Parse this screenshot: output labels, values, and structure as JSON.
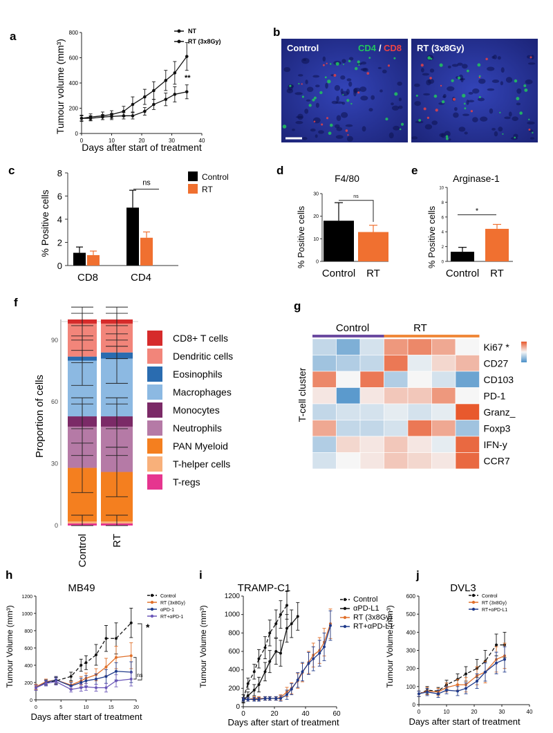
{
  "figure": {
    "panel_a": {
      "letter": "a",
      "chart_data": {
        "type": "line",
        "ylabel": "Tumour volume (mm³)",
        "xlabel": "Days after start of treatment",
        "ylim": [
          0,
          800
        ],
        "xlim": [
          0,
          40
        ],
        "yticks": [
          "0",
          "200",
          "400",
          "600",
          "800"
        ],
        "xticks": [
          "0",
          "10",
          "20",
          "30",
          "40"
        ],
        "significance": "**",
        "series": [
          {
            "name": "NT",
            "x": [
              0,
              3,
              7,
              10,
              14,
              17,
              21,
              24,
              28,
              31,
              35
            ],
            "y": [
              120,
              130,
              140,
              150,
              175,
              230,
              290,
              340,
              420,
              480,
              610
            ],
            "err": [
              25,
              25,
              30,
              30,
              40,
              60,
              60,
              70,
              80,
              90,
              110
            ]
          },
          {
            "name": "RT (3x8Gy)",
            "x": [
              0,
              3,
              7,
              10,
              14,
              17,
              21,
              24,
              28,
              31,
              35
            ],
            "y": [
              120,
              120,
              130,
              135,
              140,
              140,
              175,
              230,
              270,
              310,
              330
            ],
            "err": [
              20,
              20,
              20,
              25,
              25,
              25,
              30,
              40,
              50,
              60,
              55
            ]
          }
        ]
      }
    },
    "panel_b": {
      "letter": "b",
      "label_control": "Control",
      "stain_cd4": "CD4",
      "stain_slash": "/",
      "stain_cd8": "CD8",
      "label_rt": "RT (3x8Gy)",
      "colors": {
        "cd4": "#22c55e",
        "cd8": "#ef4444",
        "dapi": "#2a3aa8"
      }
    },
    "panel_c": {
      "letter": "c",
      "chart_data": {
        "type": "bar",
        "ylabel": "% Positive cells",
        "ylim": [
          0,
          8
        ],
        "yticks": [
          "0",
          "2",
          "4",
          "6",
          "8"
        ],
        "categories": [
          "CD8",
          "CD4"
        ],
        "series": [
          {
            "name": "Control",
            "values": [
              1.1,
              5.0
            ],
            "err": [
              0.5,
              1.5
            ],
            "color": "#000000"
          },
          {
            "name": "RT",
            "values": [
              0.9,
              2.4
            ],
            "err": [
              0.35,
              0.5
            ],
            "color": "#f07030"
          }
        ],
        "annotation": "ns"
      }
    },
    "panel_d": {
      "letter": "d",
      "chart_data": {
        "type": "bar",
        "title": "F4/80",
        "ylabel": "% Positive cells",
        "ylim": [
          0,
          30
        ],
        "yticks": [
          "0",
          "10",
          "20",
          "30"
        ],
        "categories": [
          "Control",
          "RT"
        ],
        "values": [
          18,
          13
        ],
        "err": [
          8,
          3
        ],
        "colors": [
          "#000000",
          "#f07030"
        ],
        "annotation": "ns"
      }
    },
    "panel_e": {
      "letter": "e",
      "chart_data": {
        "type": "bar",
        "title": "Arginase-1",
        "ylabel": "% Positive cells",
        "ylim": [
          0,
          10
        ],
        "yticks": [
          "0",
          "2",
          "4",
          "6",
          "8",
          "10"
        ],
        "categories": [
          "Control",
          "RT"
        ],
        "values": [
          1.3,
          4.4
        ],
        "err": [
          0.6,
          0.6
        ],
        "colors": [
          "#000000",
          "#f07030"
        ],
        "annotation": "*"
      }
    },
    "panel_f": {
      "letter": "f",
      "chart_data": {
        "type": "bar",
        "stacked": true,
        "ylabel": "Proportion of cells",
        "ylim": [
          0,
          100
        ],
        "yticks": [
          "0",
          "30",
          "60",
          "90"
        ],
        "categories": [
          "Control",
          "RT"
        ],
        "series": [
          {
            "name": "T-regs",
            "color": "#e6358f",
            "values": [
              1,
              1
            ]
          },
          {
            "name": "T-helper cells",
            "color": "#f8b07a",
            "values": [
              1,
              1
            ]
          },
          {
            "name": "PAN Myeloid",
            "color": "#f47f1f",
            "values": [
              26,
              24
            ]
          },
          {
            "name": "Neutrophils",
            "color": "#b57aa6",
            "values": [
              20,
              22
            ]
          },
          {
            "name": "Monocytes",
            "color": "#7b2a67",
            "values": [
              5,
              5
            ]
          },
          {
            "name": "Macrophages",
            "color": "#8cb9e2",
            "values": [
              27,
              28
            ]
          },
          {
            "name": "Eosinophils",
            "color": "#2a6cb0",
            "values": [
              2,
              3
            ]
          },
          {
            "name": "Dendritic cells",
            "color": "#f2857a",
            "values": [
              16,
              14
            ]
          },
          {
            "name": "CD8+ T cells",
            "color": "#d62b2b",
            "values": [
              2,
              2
            ]
          }
        ],
        "legend": [
          "CD8+ T cells",
          "Dendritic cells",
          "Eosinophils",
          "Macrophages",
          "Monocytes",
          "Neutrophils",
          "PAN Myeloid",
          "T-helper cells",
          "T-regs"
        ]
      }
    },
    "panel_g": {
      "letter": "g",
      "chart_data": {
        "type": "heatmap",
        "ylabel": "T-cell cluster",
        "group_labels": [
          "Control",
          "RT"
        ],
        "group_colors": [
          "#6b4aa0",
          "#f0883a"
        ],
        "rows": [
          "Ki67 *",
          "CD27",
          "CD103",
          "PD-1",
          "Granz_",
          "Foxp3",
          "IFN-y",
          "CCR7"
        ],
        "values": [
          [
            -0.3,
            -0.7,
            -0.2,
            0.6,
            0.7,
            0.5,
            0.0
          ],
          [
            -0.5,
            -0.4,
            -0.3,
            0.8,
            -0.1,
            0.2,
            0.4
          ],
          [
            0.7,
            0.0,
            0.8,
            -0.4,
            0.0,
            -0.2,
            -0.8
          ],
          [
            0.1,
            -0.9,
            0.1,
            0.3,
            0.3,
            0.6,
            0.0
          ],
          [
            -0.3,
            -0.2,
            -0.2,
            -0.1,
            -0.2,
            -0.1,
            1.0
          ],
          [
            0.5,
            -0.3,
            -0.3,
            -0.2,
            0.8,
            0.5,
            -0.5
          ],
          [
            -0.4,
            0.2,
            0.1,
            0.3,
            0.1,
            -0.1,
            0.9
          ],
          [
            -0.2,
            0.0,
            0.1,
            0.3,
            0.2,
            0.1,
            0.9
          ]
        ]
      }
    },
    "panel_h": {
      "letter": "h",
      "chart_data": {
        "type": "line",
        "title": "MB49",
        "ylabel": "Tumour Volume (mm³)",
        "xlabel": "Days after start of treatment",
        "ylim": [
          0,
          1200
        ],
        "xlim": [
          0,
          20
        ],
        "yticks": [
          "0",
          "200",
          "400",
          "600",
          "800",
          "1000",
          "1200"
        ],
        "xticks": [
          "0",
          "5",
          "10",
          "15",
          "20"
        ],
        "sig_star": "*",
        "sig_ns": "ns",
        "series": [
          {
            "name": "Control",
            "color": "#111111",
            "dash": true,
            "x": [
              0,
              2,
              4,
              7,
              9,
              10,
              12,
              14,
              16,
              19
            ],
            "y": [
              150,
              200,
              220,
              270,
              400,
              430,
              520,
              710,
              710,
              890
            ],
            "err": [
              30,
              30,
              40,
              50,
              70,
              80,
              120,
              150,
              180,
              170
            ]
          },
          {
            "name": "RT (3x8Gy)",
            "color": "#e0702a",
            "dash": false,
            "x": [
              0,
              2,
              4,
              7,
              9,
              10,
              12,
              14,
              16,
              19
            ],
            "y": [
              150,
              210,
              230,
              170,
              220,
              250,
              290,
              380,
              490,
              510
            ],
            "err": [
              30,
              30,
              40,
              40,
              50,
              60,
              70,
              100,
              130,
              150
            ]
          },
          {
            "name": "αPD-1",
            "color": "#1f3a8a",
            "dash": false,
            "x": [
              0,
              2,
              4,
              7,
              9,
              10,
              12,
              14,
              16,
              19
            ],
            "y": [
              140,
              200,
              230,
              160,
              200,
              220,
              240,
              270,
              330,
              320
            ],
            "err": [
              30,
              30,
              40,
              40,
              50,
              60,
              60,
              80,
              100,
              120
            ]
          },
          {
            "name": "RT+αPD-1",
            "color": "#6a56b8",
            "dash": false,
            "x": [
              0,
              2,
              4,
              7,
              9,
              10,
              12,
              14,
              16,
              19
            ],
            "y": [
              140,
              190,
              210,
              120,
              140,
              150,
              140,
              140,
              220,
              240
            ],
            "err": [
              30,
              30,
              40,
              30,
              40,
              40,
              40,
              50,
              70,
              80
            ]
          }
        ]
      }
    },
    "panel_i": {
      "letter": "i",
      "chart_data": {
        "type": "line",
        "title": "TRAMP-C1",
        "ylabel": "Tumour Volume (mm³)",
        "xlabel": "Days after start of treatment",
        "ylim": [
          0,
          1200
        ],
        "xlim": [
          0,
          60
        ],
        "yticks": [
          "0",
          "200",
          "400",
          "600",
          "800",
          "1000",
          "1200"
        ],
        "xticks": [
          "0",
          "20",
          "40",
          "60"
        ],
        "series": [
          {
            "name": "Control",
            "color": "#111111",
            "dash": true,
            "x": [
              0,
              3,
              7,
              10,
              14,
              17,
              21,
              24,
              28
            ],
            "y": [
              90,
              250,
              380,
              520,
              640,
              800,
              900,
              1000,
              1100
            ],
            "err": [
              40,
              60,
              80,
              100,
              120,
              140,
              150,
              150,
              150
            ]
          },
          {
            "name": "αPD-L1",
            "color": "#111111",
            "dash": false,
            "x": [
              0,
              3,
              7,
              10,
              14,
              17,
              21,
              24,
              28,
              31,
              35
            ],
            "y": [
              70,
              120,
              180,
              240,
              380,
              490,
              600,
              580,
              850,
              900,
              980
            ],
            "err": [
              30,
              40,
              60,
              80,
              100,
              120,
              140,
              140,
              150,
              150,
              150
            ]
          },
          {
            "name": "RT (3x8Gy)",
            "color": "#e0702a",
            "dash": false,
            "x": [
              0,
              3,
              7,
              10,
              14,
              17,
              21,
              24,
              28,
              31,
              35,
              38,
              42,
              45,
              49,
              52,
              56
            ],
            "y": [
              80,
              80,
              90,
              90,
              90,
              90,
              90,
              100,
              160,
              200,
              280,
              370,
              480,
              560,
              610,
              700,
              900
            ],
            "err": [
              20,
              20,
              20,
              20,
              20,
              20,
              20,
              30,
              50,
              60,
              80,
              100,
              120,
              130,
              140,
              150,
              160
            ]
          },
          {
            "name": "RT+αPD-L1",
            "color": "#1f3a8a",
            "dash": false,
            "x": [
              0,
              3,
              7,
              10,
              14,
              17,
              21,
              24,
              28,
              31,
              35,
              38,
              42,
              45,
              49,
              52,
              56
            ],
            "y": [
              80,
              80,
              80,
              80,
              90,
              90,
              90,
              90,
              130,
              190,
              290,
              380,
              470,
              520,
              580,
              650,
              880
            ],
            "err": [
              20,
              20,
              20,
              20,
              20,
              20,
              20,
              30,
              50,
              60,
              80,
              100,
              120,
              130,
              140,
              150,
              160
            ]
          }
        ]
      }
    },
    "panel_j": {
      "letter": "j",
      "chart_data": {
        "type": "line",
        "title": "DVL3",
        "ylabel": "Tumour Volume (mm³)",
        "xlabel": "Days after start of treatment",
        "ylim": [
          0,
          600
        ],
        "xlim": [
          0,
          40
        ],
        "yticks": [
          "0",
          "100",
          "200",
          "300",
          "400",
          "500",
          "600"
        ],
        "xticks": [
          "0",
          "10",
          "20",
          "30",
          "40"
        ],
        "series": [
          {
            "name": "Control",
            "color": "#111111",
            "dash": true,
            "x": [
              0,
              3,
              7,
              10,
              14,
              17,
              21,
              24,
              28,
              31
            ],
            "y": [
              60,
              80,
              75,
              110,
              140,
              170,
              200,
              240,
              330,
              330
            ],
            "err": [
              15,
              20,
              20,
              25,
              30,
              40,
              50,
              60,
              60,
              70
            ]
          },
          {
            "name": "RT (3x8Gy)",
            "color": "#e0702a",
            "dash": false,
            "x": [
              0,
              3,
              7,
              10,
              14,
              17,
              21,
              24,
              28,
              31
            ],
            "y": [
              60,
              75,
              70,
              95,
              110,
              110,
              160,
              180,
              250,
              270
            ],
            "err": [
              15,
              20,
              20,
              25,
              30,
              40,
              50,
              60,
              70,
              70
            ]
          },
          {
            "name": "RT+αPD-L1",
            "color": "#1f3a8a",
            "dash": false,
            "x": [
              0,
              3,
              7,
              10,
              14,
              17,
              21,
              24,
              28,
              31
            ],
            "y": [
              60,
              70,
              60,
              80,
              75,
              90,
              130,
              180,
              230,
              250
            ],
            "err": [
              15,
              20,
              20,
              20,
              25,
              30,
              40,
              50,
              60,
              70
            ]
          }
        ]
      }
    }
  }
}
